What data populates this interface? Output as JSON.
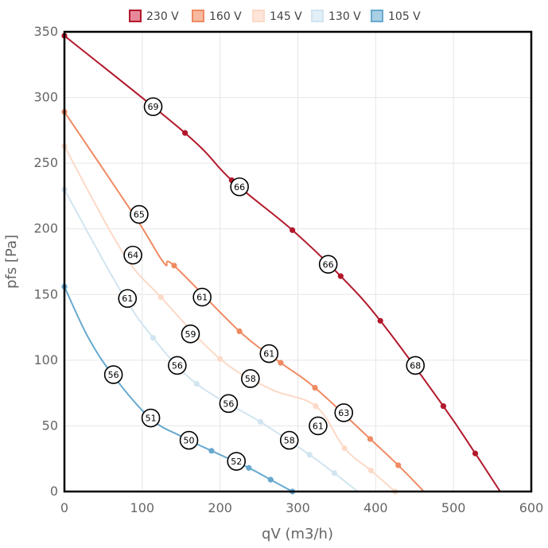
{
  "chart_data": {
    "type": "line",
    "xlabel": "qV (m3/h)",
    "ylabel": "pfs [Pa]",
    "xlim": [
      0,
      600
    ],
    "ylim": [
      0,
      350
    ],
    "x_ticks": [
      "0",
      "100",
      "200",
      "300",
      "400",
      "500",
      "600"
    ],
    "y_ticks": [
      "0",
      "50",
      "100",
      "150",
      "200",
      "250",
      "300",
      "350"
    ],
    "grid": true,
    "legend_position": "top",
    "series": [
      {
        "name": "230 V",
        "color": "#b2182b",
        "fill": "#e7889a",
        "points": [
          [
            0,
            347
          ],
          [
            155,
            273
          ],
          [
            215,
            237
          ],
          [
            293,
            199
          ],
          [
            355,
            164
          ],
          [
            406,
            130
          ],
          [
            487,
            65
          ],
          [
            528,
            29
          ],
          [
            560,
            0
          ]
        ],
        "markers": [
          [
            0,
            347
          ],
          [
            155,
            273
          ],
          [
            215,
            237
          ],
          [
            293,
            199
          ],
          [
            355,
            164
          ],
          [
            406,
            130
          ],
          [
            487,
            65
          ],
          [
            528,
            29
          ]
        ],
        "efficiency_labels": [
          {
            "x": 114,
            "y": 293,
            "text": "69"
          },
          {
            "x": 225,
            "y": 232,
            "text": "66"
          },
          {
            "x": 339,
            "y": 173,
            "text": "66"
          },
          {
            "x": 451,
            "y": 96,
            "text": "68"
          }
        ]
      },
      {
        "name": "160 V",
        "color": "#ef8a62",
        "fill": "#f7b99f",
        "points": [
          [
            0,
            289
          ],
          [
            90,
            210
          ],
          [
            128,
            174
          ],
          [
            141,
            172
          ],
          [
            225,
            122
          ],
          [
            278,
            98
          ],
          [
            322,
            79
          ],
          [
            393,
            40
          ],
          [
            429,
            20
          ],
          [
            462,
            0
          ]
        ],
        "markers": [
          [
            0,
            289
          ],
          [
            141,
            172
          ],
          [
            225,
            122
          ],
          [
            278,
            98
          ],
          [
            322,
            79
          ],
          [
            393,
            40
          ],
          [
            429,
            20
          ]
        ],
        "efficiency_labels": [
          {
            "x": 96,
            "y": 211,
            "text": "65"
          },
          {
            "x": 177,
            "y": 148,
            "text": "61"
          },
          {
            "x": 263,
            "y": 105,
            "text": "61"
          },
          {
            "x": 359,
            "y": 60,
            "text": "63"
          }
        ]
      },
      {
        "name": "145 V",
        "color": "#fcd9c7",
        "fill": "#fde6d9",
        "points": [
          [
            0,
            263
          ],
          [
            75,
            182
          ],
          [
            124,
            148
          ],
          [
            200,
            101
          ],
          [
            265,
            78
          ],
          [
            323,
            65
          ],
          [
            360,
            33
          ],
          [
            394,
            16
          ],
          [
            425,
            0
          ]
        ],
        "markers": [
          [
            0,
            263
          ],
          [
            124,
            148
          ],
          [
            200,
            101
          ],
          [
            323,
            65
          ],
          [
            360,
            33
          ],
          [
            394,
            16
          ],
          [
            425,
            0
          ]
        ],
        "efficiency_labels": [
          {
            "x": 88,
            "y": 180,
            "text": "64"
          },
          {
            "x": 162,
            "y": 120,
            "text": "59"
          },
          {
            "x": 239,
            "y": 86,
            "text": "58"
          },
          {
            "x": 326,
            "y": 50,
            "text": "61"
          }
        ]
      },
      {
        "name": "130 V",
        "color": "#d1e5f0",
        "fill": "#e3eff6",
        "points": [
          [
            0,
            230
          ],
          [
            70,
            155
          ],
          [
            114,
            117
          ],
          [
            170,
            82
          ],
          [
            252,
            53
          ],
          [
            315,
            28
          ],
          [
            347,
            14
          ],
          [
            377,
            0
          ]
        ],
        "markers": [
          [
            0,
            230
          ],
          [
            114,
            117
          ],
          [
            170,
            82
          ],
          [
            252,
            53
          ],
          [
            315,
            28
          ],
          [
            347,
            14
          ]
        ],
        "efficiency_labels": [
          {
            "x": 81,
            "y": 147,
            "text": "61"
          },
          {
            "x": 145,
            "y": 96,
            "text": "56"
          },
          {
            "x": 211,
            "y": 67,
            "text": "56"
          },
          {
            "x": 289,
            "y": 39,
            "text": "58"
          }
        ]
      },
      {
        "name": "105 V",
        "color": "#67a9cf",
        "fill": "#a9cfe5",
        "points": [
          [
            0,
            156
          ],
          [
            30,
            118
          ],
          [
            63,
            88
          ],
          [
            110,
            56
          ],
          [
            150,
            42
          ],
          [
            189,
            31
          ],
          [
            237,
            18
          ],
          [
            265,
            9
          ],
          [
            293,
            0
          ]
        ],
        "markers": [
          [
            0,
            156
          ],
          [
            189,
            31
          ],
          [
            237,
            18
          ],
          [
            265,
            9
          ],
          [
            293,
            0
          ]
        ],
        "efficiency_labels": [
          {
            "x": 63,
            "y": 89,
            "text": "56"
          },
          {
            "x": 111,
            "y": 56,
            "text": "51"
          },
          {
            "x": 160,
            "y": 39,
            "text": "50"
          },
          {
            "x": 221,
            "y": 23,
            "text": "52"
          }
        ]
      }
    ]
  }
}
